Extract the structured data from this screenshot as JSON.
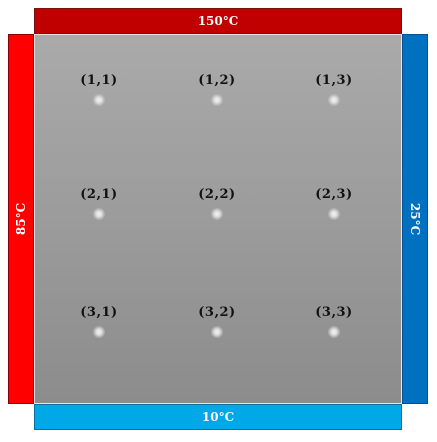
{
  "boundaries": {
    "top": {
      "label": "150°C",
      "color": "#c00000"
    },
    "bottom": {
      "label": "10°C",
      "color": "#00a8e8"
    },
    "left": {
      "label": "85°C",
      "color": "#ff0000"
    },
    "right": {
      "label": "25°C",
      "color": "#0070c0"
    }
  },
  "plate": {
    "color": "#a0a0a0"
  },
  "nodes": [
    {
      "label": "(1,1)"
    },
    {
      "label": "(1,2)"
    },
    {
      "label": "(1,3)"
    },
    {
      "label": "(2,1)"
    },
    {
      "label": "(2,2)"
    },
    {
      "label": "(2,3)"
    },
    {
      "label": "(3,1)"
    },
    {
      "label": "(3,2)"
    },
    {
      "label": "(3,3)"
    }
  ]
}
